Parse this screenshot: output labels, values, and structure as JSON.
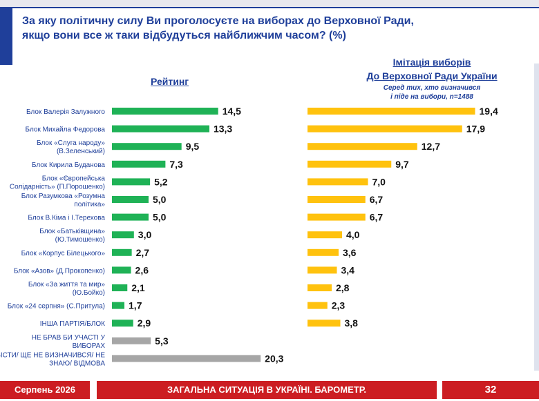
{
  "header": {
    "title_line1": "За яку політичну силу Ви проголосуєте на виборах до Верховної Ради,",
    "title_line2": "якщо вони все ж таки відбудуться найближчим часом? (%)"
  },
  "left_panel": {
    "heading": "Рейтинг"
  },
  "right_panel": {
    "heading_line1": "Імітація виборів",
    "heading_line2": "До Верховної Ради України",
    "sub_line1": "Серед тих, хто визначився",
    "sub_line2": "і піде на вибори, n=1488"
  },
  "footer": {
    "date": "Серпень 2026",
    "title": "ЗАГАЛЬНА СИТУАЦІЯ В УКРАЇНІ. БАРОМЕТР.",
    "page": "32"
  },
  "colors": {
    "brand_blue": "#1f3f9a",
    "green": "#1fb256",
    "grey": "#a6a6a6",
    "yellow": "#ffc20e",
    "red": "#cc1d22"
  },
  "chart_data": [
    {
      "type": "bar",
      "orientation": "horizontal",
      "title": "Рейтинг",
      "categories": [
        [
          "Блок Валерія Залужного"
        ],
        [
          "Блок Михайла Федорова"
        ],
        [
          "Блок «Слуга народу»",
          "(В.Зеленський)"
        ],
        [
          "Блок Кирила Буданова"
        ],
        [
          "Блок «Європейська",
          "Солідарність» (П.Порошенко)"
        ],
        [
          "Блок Разумкова «Розумна",
          "політика»"
        ],
        [
          "Блок В.Кіма і І.Терехова"
        ],
        [
          "Блок «Батьківщина»",
          "(Ю.Тимошенко)"
        ],
        [
          "Блок «Корпус Білецького»"
        ],
        [
          "Блок «Азов» (Д.Прокопенко)"
        ],
        [
          "Блок «За життя та мир»",
          "(Ю.Бойко)"
        ],
        [
          "Блок «24 серпня» (С.Притула)"
        ],
        [
          "ІНША ПАРТІЯ/БЛОК"
        ],
        [
          "НЕ БРАВ БИ УЧАСТІ У",
          "ВИБОРАХ"
        ],
        [
          "ВАЖКО ВІДПОВІСТИ/ ЩЕ НЕ ВИЗНАЧИВСЯ/ НЕ",
          "ЗНАЮ/ ВІДМОВА"
        ]
      ],
      "values": [
        14.5,
        13.3,
        9.5,
        7.3,
        5.2,
        5.0,
        5.0,
        3.0,
        2.7,
        2.6,
        2.1,
        1.7,
        2.9,
        5.3,
        20.3
      ],
      "labels": [
        "14,5",
        "13,3",
        "9,5",
        "7,3",
        "5,2",
        "5,0",
        "5,0",
        "3,0",
        "2,7",
        "2,6",
        "2,1",
        "1,7",
        "2,9",
        "5,3",
        "20,3"
      ],
      "bar_colors": [
        "#1fb256",
        "#1fb256",
        "#1fb256",
        "#1fb256",
        "#1fb256",
        "#1fb256",
        "#1fb256",
        "#1fb256",
        "#1fb256",
        "#1fb256",
        "#1fb256",
        "#1fb256",
        "#1fb256",
        "#a6a6a6",
        "#a6a6a6"
      ]
    },
    {
      "type": "bar",
      "orientation": "horizontal",
      "title": "Імітація виборів До Верховної Ради України",
      "subtitle": "Серед тих, хто визначився і піде на вибори, n=1488",
      "categories": [],
      "values": [
        19.4,
        17.9,
        12.7,
        9.7,
        7.0,
        6.7,
        6.7,
        4.0,
        3.6,
        3.4,
        2.8,
        2.3,
        3.8
      ],
      "labels": [
        "19,4",
        "17,9",
        "12,7",
        "9,7",
        "7,0",
        "6,7",
        "6,7",
        "4,0",
        "3,6",
        "3,4",
        "2,8",
        "2,3",
        "3,8"
      ],
      "bar_color": "#ffc20e"
    }
  ]
}
